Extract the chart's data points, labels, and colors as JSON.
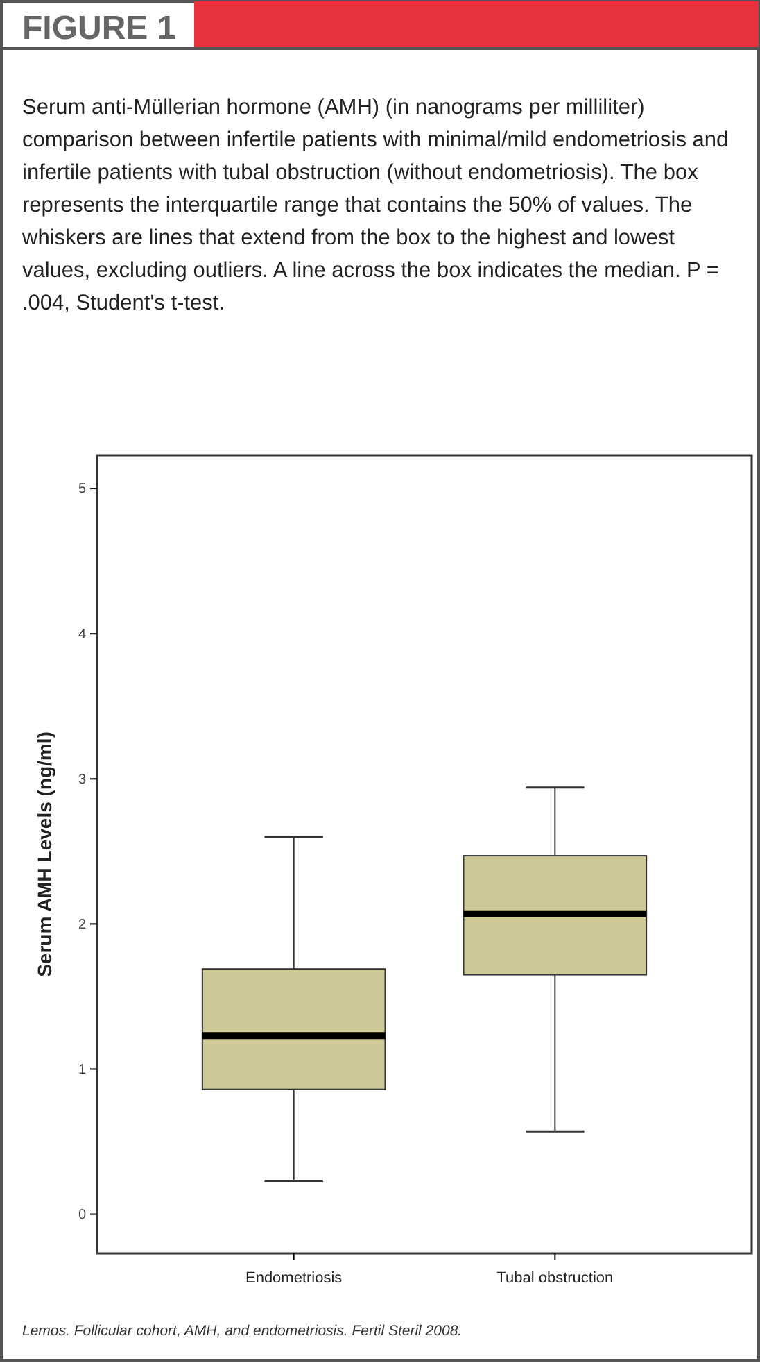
{
  "chart_data": {
    "type": "box",
    "title": "FIGURE 1",
    "subtitle": "Serum anti-Müllerian hormone (AMH) (in nanograms per milliliter) comparison between infertile patients with minimal/mild endometriosis and infertile patients with tubal obstruction (without endometriosis). The box represents the interquartile range that contains the 50% of values. The whiskers are lines that extend from the box to the highest and lowest values, excluding outliers. A line across the box indicates the median. P = .004, Student's t-test.",
    "ylabel": "Serum AMH Levels (ng/ml)",
    "categories": [
      "Endometriosis",
      "Tubal obstruction"
    ],
    "color": "#cdc895",
    "boxes": [
      {
        "low": 0.23,
        "q1": 0.86,
        "median": 1.23,
        "q3": 1.69,
        "high": 2.6
      },
      {
        "low": 0.57,
        "q1": 1.65,
        "median": 2.07,
        "q3": 2.47,
        "high": 2.94
      }
    ],
    "ylim": [
      -0.27,
      5.23
    ],
    "yticks": [
      0,
      1,
      2,
      3,
      4,
      5
    ],
    "annotations": [
      "Lemos. Follicular cohort, AMH, and endometriosis. Fertil Steril 2008."
    ]
  }
}
